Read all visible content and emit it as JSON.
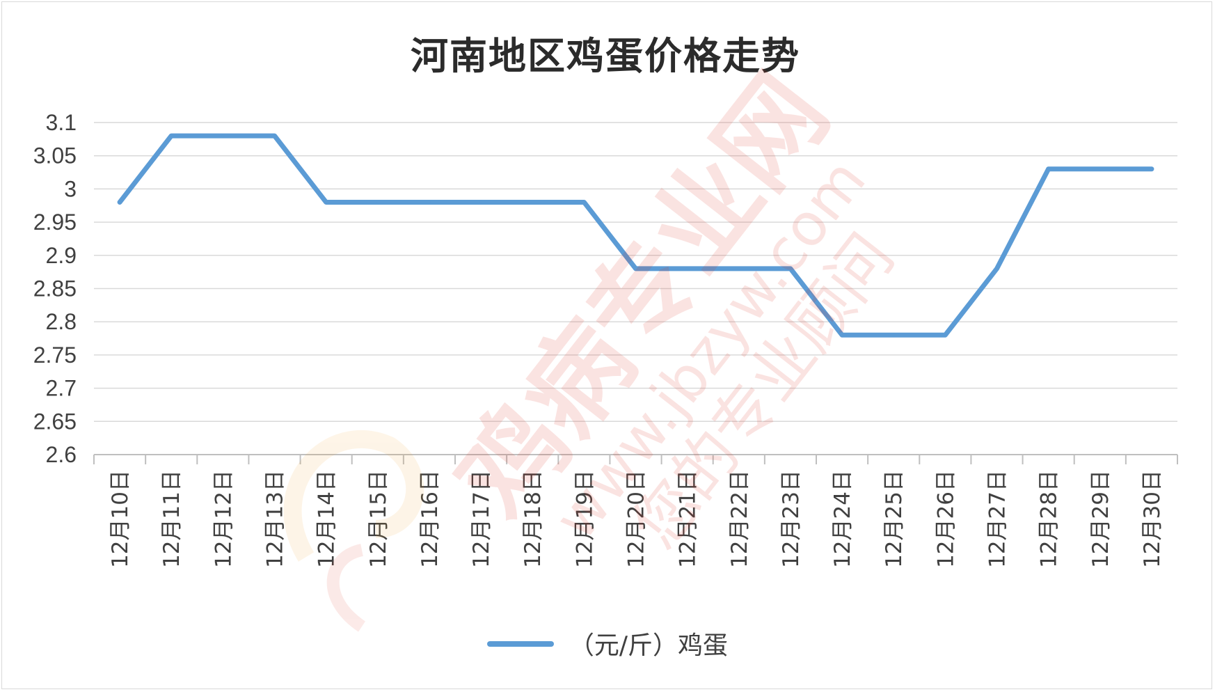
{
  "chart_data": {
    "type": "line",
    "title": "河南地区鸡蛋价格走势",
    "categories": [
      "12月10日",
      "12月11日",
      "12月12日",
      "12月13日",
      "12月14日",
      "12月15日",
      "12月16日",
      "12月17日",
      "12月18日",
      "12月19日",
      "12月20日",
      "12月21日",
      "12月22日",
      "12月23日",
      "12月24日",
      "12月25日",
      "12月26日",
      "12月27日",
      "12月28日",
      "12月29日",
      "12月30日"
    ],
    "series": [
      {
        "name": "（元/斤）鸡蛋",
        "values": [
          2.98,
          3.08,
          3.08,
          3.08,
          2.98,
          2.98,
          2.98,
          2.98,
          2.98,
          2.98,
          2.88,
          2.88,
          2.88,
          2.88,
          2.78,
          2.78,
          2.78,
          2.88,
          3.03,
          3.03,
          3.03
        ],
        "color": "#5b9bd5"
      }
    ],
    "ylim": [
      2.6,
      3.1
    ],
    "yticks": [
      "3.1",
      "3.05",
      "3",
      "2.95",
      "2.9",
      "2.85",
      "2.8",
      "2.75",
      "2.7",
      "2.65",
      "2.6"
    ],
    "ytick_values": [
      3.1,
      3.05,
      3.0,
      2.95,
      2.9,
      2.85,
      2.8,
      2.75,
      2.7,
      2.65,
      2.6
    ],
    "grid": true,
    "legend_position": "bottom",
    "xlabel": "",
    "ylabel": ""
  },
  "watermark": {
    "brand": "鸡病专业网",
    "url": "www.jbzyw.com",
    "slogan": "您的专业顾问"
  }
}
